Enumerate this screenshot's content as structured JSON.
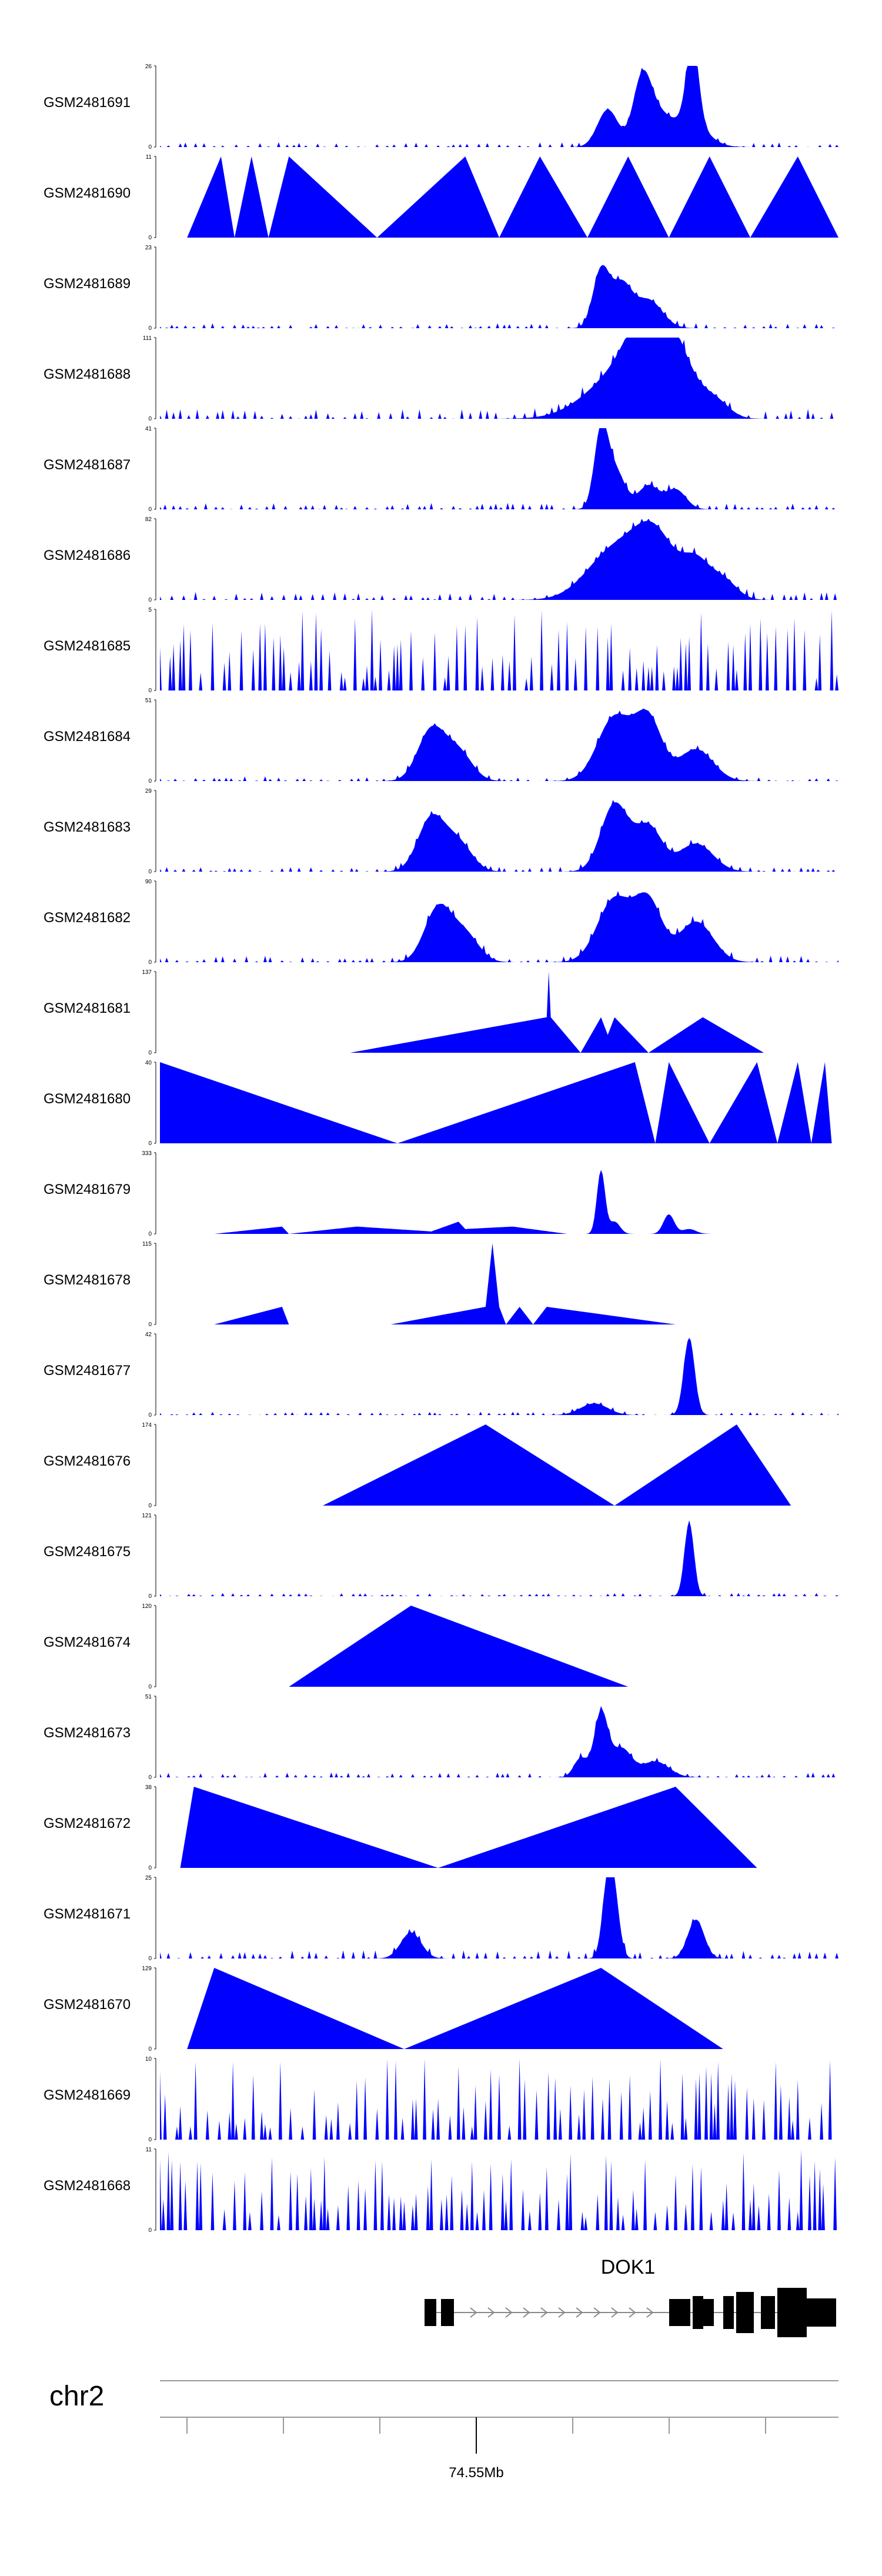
{
  "chart_data": {
    "type": "area",
    "color": "#0000ff",
    "chromosome": "chr2",
    "gene": "DOK1",
    "position_label": "74.55Mb",
    "x_range": [
      0,
      100
    ],
    "tracks": [
      {
        "name": "GSM2481691",
        "ymax": 26,
        "peaks": [
          [
            66,
            12,
            1.5
          ],
          [
            71,
            18,
            1.3
          ],
          [
            78,
            8,
            2.5
          ],
          [
            78.5,
            26,
            0.9
          ],
          [
            73,
            10,
            2
          ]
        ],
        "noise": 3,
        "seed": 1
      },
      {
        "name": "GSM2481690",
        "ymax": 11,
        "points": [
          [
            4,
            0
          ],
          [
            9,
            11
          ],
          [
            11,
            0
          ],
          [
            13.5,
            11
          ],
          [
            16,
            0
          ],
          [
            19,
            11
          ],
          [
            32,
            0
          ],
          [
            45,
            11
          ],
          [
            50,
            0
          ],
          [
            56,
            11
          ],
          [
            63,
            0
          ],
          [
            69,
            11
          ],
          [
            75,
            0
          ],
          [
            81,
            11
          ],
          [
            87,
            0
          ],
          [
            94,
            11
          ],
          [
            100,
            0
          ]
        ]
      },
      {
        "name": "GSM2481689",
        "ymax": 23,
        "peaks": [
          [
            65,
            16,
            1.2
          ],
          [
            68,
            12,
            1.5
          ],
          [
            72,
            8,
            2
          ]
        ],
        "noise": 3,
        "seed": 2
      },
      {
        "name": "GSM2481688",
        "ymax": 111,
        "peaks": [
          [
            68,
            60,
            5
          ],
          [
            72,
            90,
            3
          ],
          [
            76,
            70,
            3
          ],
          [
            82,
            20,
            2
          ]
        ],
        "noise": 6,
        "seed": 3
      },
      {
        "name": "GSM2481687",
        "ymax": 41,
        "peaks": [
          [
            65,
            36,
            1
          ],
          [
            67,
            20,
            1.5
          ],
          [
            72,
            12,
            1.5
          ],
          [
            76,
            10,
            1.5
          ]
        ],
        "noise": 4,
        "seed": 4
      },
      {
        "name": "GSM2481686",
        "ymax": 82,
        "peaks": [
          [
            67,
            50,
            4
          ],
          [
            73,
            60,
            3
          ],
          [
            79,
            35,
            2
          ],
          [
            83,
            20,
            2
          ]
        ],
        "noise": 5,
        "seed": 5
      },
      {
        "name": "GSM2481685",
        "ymax": 5,
        "spiky": true,
        "noise": 5,
        "seed": 6
      },
      {
        "name": "GSM2481684",
        "ymax": 51,
        "peaks": [
          [
            40,
            32,
            2
          ],
          [
            44,
            18,
            2
          ],
          [
            67,
            40,
            2.5
          ],
          [
            72,
            38,
            2
          ],
          [
            79,
            20,
            2.5
          ]
        ],
        "noise": 3,
        "seed": 7
      },
      {
        "name": "GSM2481683",
        "ymax": 29,
        "peaks": [
          [
            40,
            19,
            2
          ],
          [
            44,
            10,
            2
          ],
          [
            67,
            24,
            2
          ],
          [
            72,
            16,
            2
          ],
          [
            79,
            10,
            2.5
          ]
        ],
        "noise": 3,
        "seed": 8
      },
      {
        "name": "GSM2481682",
        "ymax": 90,
        "peaks": [
          [
            41,
            60,
            2
          ],
          [
            45,
            30,
            2
          ],
          [
            67,
            70,
            2.5
          ],
          [
            72,
            65,
            2
          ],
          [
            79,
            45,
            2.5
          ]
        ],
        "noise": 4,
        "seed": 9
      },
      {
        "name": "GSM2481681",
        "ymax": 137,
        "points": [
          [
            28,
            0
          ],
          [
            57,
            60
          ],
          [
            57.3,
            137
          ],
          [
            57.6,
            60
          ],
          [
            62,
            0
          ],
          [
            65,
            60
          ],
          [
            66,
            30
          ],
          [
            67,
            60
          ],
          [
            72,
            0
          ],
          [
            80,
            60
          ],
          [
            89,
            0
          ]
        ]
      },
      {
        "name": "GSM2481680",
        "ymax": 40,
        "points": [
          [
            0,
            40
          ],
          [
            35,
            0
          ],
          [
            70,
            40
          ],
          [
            73,
            0
          ],
          [
            75,
            40
          ],
          [
            81,
            0
          ],
          [
            88,
            40
          ],
          [
            91,
            0
          ],
          [
            94,
            40
          ],
          [
            96,
            0
          ],
          [
            98,
            40
          ],
          [
            99,
            0
          ]
        ]
      },
      {
        "name": "GSM2481679",
        "ymax": 333,
        "peaks": [
          [
            65,
            260,
            0.6
          ],
          [
            67,
            50,
            0.8
          ],
          [
            75,
            80,
            0.8
          ],
          [
            78,
            20,
            1
          ]
        ],
        "points": [
          [
            8,
            0
          ],
          [
            18,
            30
          ],
          [
            19,
            0
          ],
          [
            29,
            30
          ],
          [
            40,
            10
          ],
          [
            44,
            50
          ],
          [
            45,
            20
          ],
          [
            52,
            30
          ],
          [
            60,
            0
          ],
          [
            90,
            0
          ]
        ],
        "noise": 0,
        "seed": 10
      },
      {
        "name": "GSM2481678",
        "ymax": 115,
        "points": [
          [
            8,
            0
          ],
          [
            18,
            25
          ],
          [
            19,
            0
          ],
          [
            34,
            0
          ],
          [
            48,
            25
          ],
          [
            49,
            115
          ],
          [
            50,
            25
          ],
          [
            51,
            0
          ],
          [
            53,
            25
          ],
          [
            55,
            0
          ],
          [
            57,
            25
          ],
          [
            76,
            0
          ]
        ]
      },
      {
        "name": "GSM2481677",
        "ymax": 42,
        "peaks": [
          [
            78,
            40,
            0.8
          ],
          [
            64,
            6,
            2
          ]
        ],
        "noise": 2,
        "seed": 11
      },
      {
        "name": "GSM2481676",
        "ymax": 174,
        "points": [
          [
            24,
            0
          ],
          [
            48,
            174
          ],
          [
            67,
            0
          ],
          [
            85,
            174
          ],
          [
            93,
            0
          ]
        ]
      },
      {
        "name": "GSM2481675",
        "ymax": 121,
        "peaks": [
          [
            78,
            110,
            0.7
          ]
        ],
        "noise": 2,
        "seed": 12
      },
      {
        "name": "GSM2481674",
        "ymax": 120,
        "points": [
          [
            19,
            0
          ],
          [
            37,
            120
          ],
          [
            69,
            0
          ]
        ]
      },
      {
        "name": "GSM2481673",
        "ymax": 51,
        "peaks": [
          [
            65,
            40,
            1
          ],
          [
            62,
            12,
            1
          ],
          [
            68,
            18,
            1.5
          ],
          [
            73,
            10,
            2
          ]
        ],
        "noise": 3,
        "seed": 13
      },
      {
        "name": "GSM2481672",
        "ymax": 38,
        "points": [
          [
            3,
            0
          ],
          [
            5,
            38
          ],
          [
            41,
            0
          ],
          [
            76,
            38
          ],
          [
            88,
            0
          ]
        ]
      },
      {
        "name": "GSM2481671",
        "ymax": 25,
        "peaks": [
          [
            66,
            22,
            0.8
          ],
          [
            67,
            15,
            0.8
          ],
          [
            79,
            12,
            1.2
          ],
          [
            37,
            8,
            1.5
          ]
        ],
        "noise": 5,
        "seed": 14
      },
      {
        "name": "GSM2481670",
        "ymax": 129,
        "points": [
          [
            4,
            0
          ],
          [
            8,
            129
          ],
          [
            36,
            0
          ],
          [
            65,
            129
          ],
          [
            83,
            0
          ]
        ]
      },
      {
        "name": "GSM2481669",
        "ymax": 10,
        "spiky": true,
        "noise": 4,
        "seed": 15
      },
      {
        "name": "GSM2481668",
        "ymax": 11,
        "spiky": true,
        "noise": 3,
        "seed": 16
      }
    ]
  }
}
